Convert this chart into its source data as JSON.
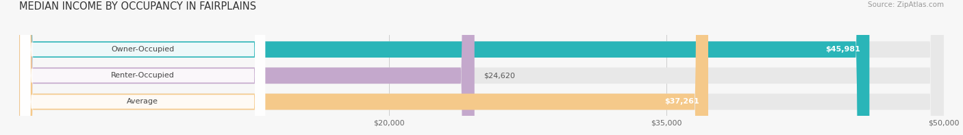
{
  "title": "MEDIAN INCOME BY OCCUPANCY IN FAIRPLAINS",
  "source": "Source: ZipAtlas.com",
  "categories": [
    "Owner-Occupied",
    "Renter-Occupied",
    "Average"
  ],
  "values": [
    45981,
    24620,
    37261
  ],
  "bar_colors": [
    "#2ab5b8",
    "#c4a8cc",
    "#f5c98a"
  ],
  "value_labels": [
    "$45,981",
    "$24,620",
    "$37,261"
  ],
  "xmin": 0,
  "xmax": 50000,
  "xticks": [
    20000,
    35000,
    50000
  ],
  "xtick_labels": [
    "$20,000",
    "$35,000",
    "$50,000"
  ],
  "background_color": "#f7f7f7",
  "bar_background": "#e8e8e8",
  "title_fontsize": 10.5,
  "source_fontsize": 7.5,
  "bar_height": 0.62,
  "label_bg": "#ffffff"
}
